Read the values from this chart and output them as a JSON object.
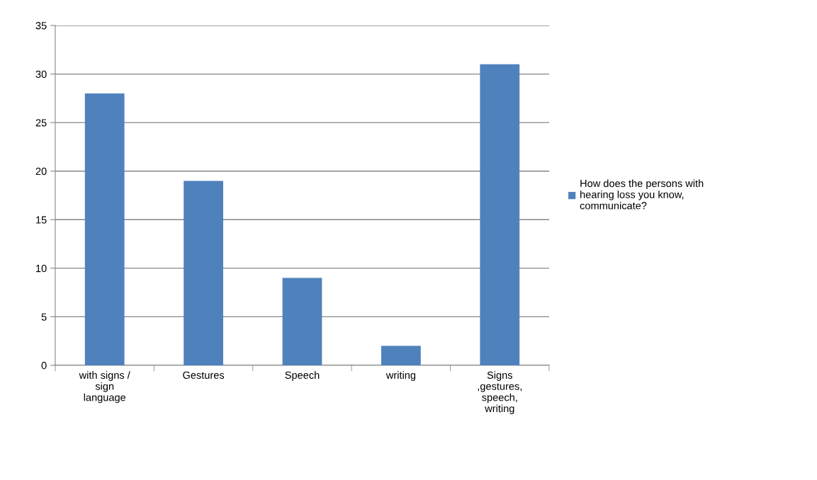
{
  "chart_data": {
    "type": "bar",
    "categories": [
      "with signs /\nsign\nlanguage",
      "Gestures",
      "Speech",
      "writing",
      "Signs\n,gestures,\nspeech,\nwriting"
    ],
    "series": [
      {
        "name": "How does the persons with\nhearing loss you know,\ncommunicate?",
        "color": "#4f81bd",
        "values": [
          28,
          19,
          9,
          2,
          31
        ]
      }
    ],
    "ylim": [
      0,
      35
    ],
    "yticks": [
      0,
      5,
      10,
      15,
      20,
      25,
      30,
      35
    ],
    "grid": "y",
    "legend": "right"
  }
}
